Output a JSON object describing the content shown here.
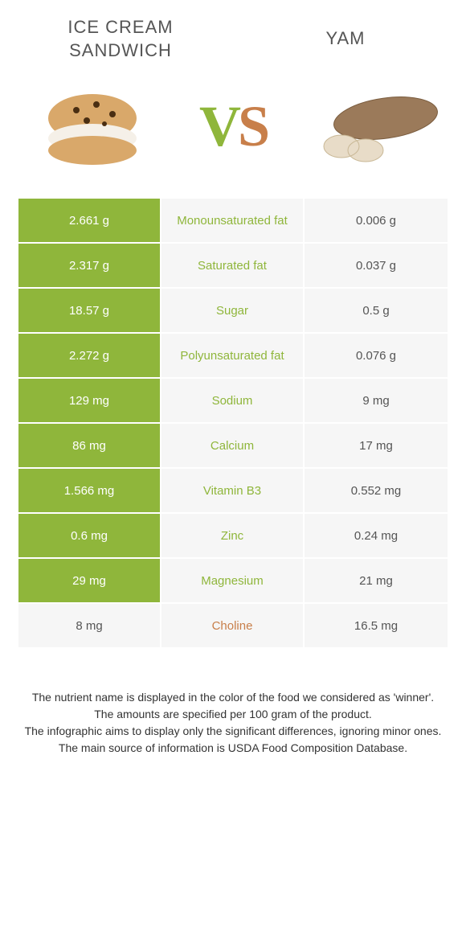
{
  "header": {
    "left_title": "Ice Cream\nSandwich",
    "right_title": "Yam",
    "vs_v": "V",
    "vs_s": "S"
  },
  "colors": {
    "green": "#8fb63b",
    "brown": "#c87f4a",
    "cell_bg": "#f6f6f6"
  },
  "rows": [
    {
      "left": "2.661 g",
      "label": "Monounsaturated fat",
      "right": "0.006 g",
      "winner": "left"
    },
    {
      "left": "2.317 g",
      "label": "Saturated fat",
      "right": "0.037 g",
      "winner": "left"
    },
    {
      "left": "18.57 g",
      "label": "Sugar",
      "right": "0.5 g",
      "winner": "left"
    },
    {
      "left": "2.272 g",
      "label": "Polyunsaturated fat",
      "right": "0.076 g",
      "winner": "left"
    },
    {
      "left": "129 mg",
      "label": "Sodium",
      "right": "9 mg",
      "winner": "left"
    },
    {
      "left": "86 mg",
      "label": "Calcium",
      "right": "17 mg",
      "winner": "left"
    },
    {
      "left": "1.566 mg",
      "label": "Vitamin B3",
      "right": "0.552 mg",
      "winner": "left"
    },
    {
      "left": "0.6 mg",
      "label": "Zinc",
      "right": "0.24 mg",
      "winner": "left"
    },
    {
      "left": "29 mg",
      "label": "Magnesium",
      "right": "21 mg",
      "winner": "left"
    },
    {
      "left": "8 mg",
      "label": "Choline",
      "right": "16.5 mg",
      "winner": "right"
    }
  ],
  "footer": {
    "line1": "The nutrient name is displayed in the color of the food we considered as 'winner'.",
    "line2": "The amounts are specified per 100 gram of the product.",
    "line3": "The infographic aims to display only the significant differences, ignoring minor ones.",
    "line4": "The main source of information is USDA Food Composition Database."
  }
}
